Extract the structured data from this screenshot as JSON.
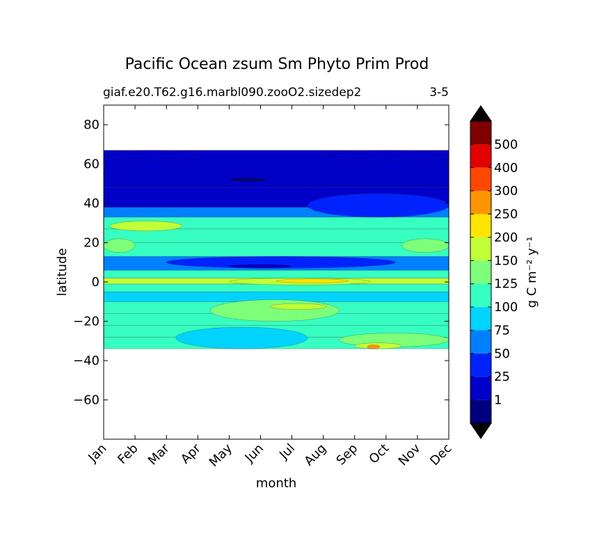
{
  "chart_data": {
    "type": "heatmap",
    "title": "Pacific Ocean zsum Sm Phyto Prim Prod",
    "subtitle_left": "giaf.e20.T62.g16.marbl090.zooO2.sizedep2",
    "subtitle_right": "3-5",
    "xlabel": "month",
    "ylabel": "latitude",
    "x_ticks": [
      "Jan",
      "Feb",
      "Mar",
      "Apr",
      "May",
      "Jun",
      "Jul",
      "Aug",
      "Sep",
      "Oct",
      "Nov",
      "Dec"
    ],
    "y_ticks": [
      80,
      60,
      40,
      20,
      0,
      -20,
      -40,
      -60
    ],
    "ylim": [
      -80,
      90
    ],
    "data_lat_range": [
      -34,
      67
    ],
    "colorbar": {
      "label": "g C m⁻² y⁻¹",
      "levels": [
        1,
        25,
        50,
        75,
        100,
        125,
        150,
        200,
        250,
        300,
        400,
        500
      ],
      "colors": [
        "#00007f",
        "#0000c8",
        "#0022ff",
        "#0080ff",
        "#00d4ff",
        "#36ffc1",
        "#7dff7a",
        "#c1ff36",
        "#ffe500",
        "#ff9400",
        "#ff4700",
        "#e40000",
        "#7f0000"
      ],
      "extend": "both",
      "under_color": "#000000",
      "over_color": "#000000"
    },
    "bands": [
      {
        "lat": [
          -34,
          -28
        ],
        "value": 110
      },
      {
        "lat": [
          -28,
          -22
        ],
        "value": 115
      },
      {
        "lat": [
          -22,
          -16
        ],
        "value": 118
      },
      {
        "lat": [
          -16,
          -10
        ],
        "value": 120
      },
      {
        "lat": [
          -10,
          -5
        ],
        "value": 85
      },
      {
        "lat": [
          -5,
          -1
        ],
        "value": 105
      },
      {
        "lat": [
          -1,
          2
        ],
        "value": 160
      },
      {
        "lat": [
          2,
          6
        ],
        "value": 110
      },
      {
        "lat": [
          6,
          13
        ],
        "value": 65
      },
      {
        "lat": [
          13,
          20
        ],
        "value": 110
      },
      {
        "lat": [
          20,
          27
        ],
        "value": 115
      },
      {
        "lat": [
          27,
          33
        ],
        "value": 115
      },
      {
        "lat": [
          33,
          38
        ],
        "value": 60
      },
      {
        "lat": [
          38,
          48
        ],
        "value": 20
      },
      {
        "lat": [
          48,
          67
        ],
        "value": 10
      }
    ],
    "patches": [
      {
        "months": [
          3.4,
          7.5
        ],
        "lat": [
          -20,
          -9
        ],
        "value": 140
      },
      {
        "months": [
          5.3,
          7.1
        ],
        "lat": [
          -14,
          -11
        ],
        "value": 170
      },
      {
        "months": [
          7.5,
          11
        ],
        "lat": [
          -33,
          -26
        ],
        "value": 140
      },
      {
        "months": [
          8,
          9.5
        ],
        "lat": [
          -34,
          -31
        ],
        "value": 175
      },
      {
        "months": [
          8.4,
          8.8
        ],
        "lat": [
          -34,
          -32
        ],
        "value": 260
      },
      {
        "months": [
          2.3,
          6.5
        ],
        "lat": [
          -34,
          -23
        ],
        "value": 80
      },
      {
        "months": [
          4,
          8.5
        ],
        "lat": [
          -1.5,
          2
        ],
        "value": 180
      },
      {
        "months": [
          5.5,
          7.8
        ],
        "lat": [
          -0.5,
          1.5
        ],
        "value": 220
      },
      {
        "months": [
          2,
          9.3
        ],
        "lat": [
          7,
          13
        ],
        "value": 40
      },
      {
        "months": [
          4,
          6
        ],
        "lat": [
          7,
          9
        ],
        "value": 20
      },
      {
        "months": [
          0.2,
          2.5
        ],
        "lat": [
          26,
          31
        ],
        "value": 160
      },
      {
        "months": [
          0,
          1
        ],
        "lat": [
          15,
          22
        ],
        "value": 140
      },
      {
        "months": [
          9.5,
          11
        ],
        "lat": [
          15,
          22
        ],
        "value": 140
      },
      {
        "months": [
          6.5,
          11
        ],
        "lat": [
          33,
          45
        ],
        "value": 40
      },
      {
        "months": [
          4,
          5.2
        ],
        "lat": [
          51,
          53
        ],
        "value": 0.5
      },
      {
        "months": [
          0,
          3
        ],
        "lat": [
          62,
          67
        ],
        "value": 5
      },
      {
        "months": [
          7,
          11
        ],
        "lat": [
          62,
          67
        ],
        "value": 5
      }
    ]
  }
}
